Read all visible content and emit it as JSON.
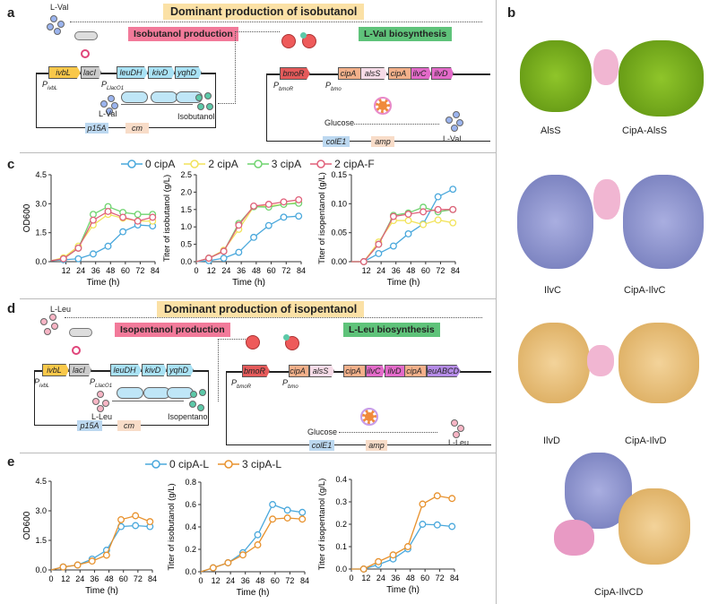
{
  "panels": {
    "a": "a",
    "b": "b",
    "c": "c",
    "d": "d",
    "e": "e"
  },
  "panel_a": {
    "title": "Dominant production of isobutanol",
    "left_tag": "Isobutanol production",
    "right_tag": "L-Val biosynthesis",
    "inducer": "L-Val",
    "product": "Isobutanol",
    "substrate": "L-Val",
    "glucose": "Glucose",
    "output": "L-Val",
    "genes_left": [
      "ivbL",
      "lacI",
      "leuDH",
      "kivD",
      "yqhD"
    ],
    "promoters_left": [
      "PivbL",
      "PLlacO1"
    ],
    "markers_left": [
      "p15A",
      "cm"
    ],
    "genes_right": [
      "bmoR",
      "cipA",
      "alsS",
      "cipA",
      "ilvC",
      "ilvD"
    ],
    "promoters_right": [
      "PbmoR",
      "Pbmo"
    ],
    "markers_right": [
      "colE1",
      "amp"
    ]
  },
  "panel_d": {
    "title": "Dominant production of isopentanol",
    "left_tag": "Isopentanol production",
    "right_tag": "L-Leu biosynthesis",
    "inducer": "L-Leu",
    "product": "Isopentanol",
    "substrate": "L-Leu",
    "glucose": "Glucose",
    "output": "L-Leu",
    "genes_left": [
      "ivbL",
      "lacI",
      "leuDH",
      "kivD",
      "yqhD"
    ],
    "promoters_left": [
      "PivbL",
      "PLlacO1"
    ],
    "markers_left": [
      "p15A",
      "cm"
    ],
    "genes_right": [
      "bmoR",
      "cipA",
      "alsS",
      "cipA",
      "ilvC",
      "ilvD",
      "cipA",
      "leuABCD"
    ],
    "promoters_right": [
      "PbmoR",
      "Pbmo"
    ],
    "markers_right": [
      "colE1",
      "amp"
    ]
  },
  "panel_b": {
    "labels": [
      "AlsS",
      "CipA-AlsS",
      "IlvC",
      "CipA-IlvC",
      "IlvD",
      "CipA-IlvD",
      "CipA-IlvCD"
    ]
  },
  "colors": {
    "0 cipA": "#4aa8dc",
    "2 cipA": "#f2e35a",
    "3 cipA": "#6fd36f",
    "2 cipA-F": "#e0607a",
    "0 cipA-L": "#4aa8dc",
    "3 cipA-L": "#e8922e"
  },
  "legend_c": [
    "0 cipA",
    "2 cipA",
    "3 cipA",
    "2 cipA-F"
  ],
  "legend_e": [
    "0 cipA-L",
    "3 cipA-L"
  ],
  "chart_data": [
    {
      "id": "c1",
      "type": "line",
      "xlabel": "Time (h)",
      "ylabel": "OD600",
      "xlim": [
        0,
        84
      ],
      "ylim": [
        0,
        4.5
      ],
      "xticks": [
        12,
        24,
        36,
        48,
        60,
        72,
        84
      ],
      "yticks": [
        "0.0",
        "1.5",
        "3.0",
        "4.5"
      ],
      "x": [
        0,
        10,
        22,
        34,
        46,
        58,
        70,
        82
      ],
      "series": [
        {
          "name": "0 cipA",
          "values": [
            0.05,
            0.1,
            0.15,
            0.4,
            0.8,
            1.55,
            1.9,
            1.85
          ]
        },
        {
          "name": "2 cipA",
          "values": [
            0.05,
            0.2,
            0.8,
            1.9,
            2.45,
            2.25,
            2.1,
            2.1
          ]
        },
        {
          "name": "3 cipA",
          "values": [
            0.05,
            0.15,
            0.7,
            2.45,
            2.85,
            2.55,
            2.45,
            2.45
          ]
        },
        {
          "name": "2 cipA-F",
          "values": [
            0.05,
            0.15,
            0.7,
            2.15,
            2.6,
            2.3,
            2.1,
            2.3
          ]
        }
      ]
    },
    {
      "id": "c2",
      "type": "line",
      "xlabel": "Time (h)",
      "ylabel": "Titer of isobutanol (g/L)",
      "xlim": [
        0,
        84
      ],
      "ylim": [
        0,
        2.5
      ],
      "xticks": [
        0,
        12,
        24,
        36,
        48,
        60,
        72,
        84
      ],
      "yticks": [
        "0.0",
        "0.5",
        "1.0",
        "1.5",
        "2.0",
        "2.5"
      ],
      "x": [
        0,
        10,
        22,
        34,
        46,
        58,
        70,
        82
      ],
      "series": [
        {
          "name": "0 cipA",
          "values": [
            0,
            0.03,
            0.1,
            0.27,
            0.7,
            1.04,
            1.28,
            1.31
          ]
        },
        {
          "name": "2 cipA",
          "values": [
            0,
            0.1,
            0.33,
            0.93,
            1.58,
            1.6,
            1.65,
            1.7
          ]
        },
        {
          "name": "3 cipA",
          "values": [
            0,
            0.1,
            0.3,
            1.1,
            1.58,
            1.57,
            1.65,
            1.68
          ]
        },
        {
          "name": "2 cipA-F",
          "values": [
            0,
            0.1,
            0.3,
            1.05,
            1.6,
            1.65,
            1.72,
            1.78
          ]
        }
      ]
    },
    {
      "id": "c3",
      "type": "line",
      "xlabel": "Time (h)",
      "ylabel": "Titer of isopentanol (g/L)",
      "xlim": [
        0,
        84
      ],
      "ylim": [
        0,
        0.15
      ],
      "xticks": [
        12,
        24,
        36,
        48,
        60,
        72,
        84
      ],
      "yticks": [
        "0.00",
        "0.05",
        "0.10",
        "0.15"
      ],
      "x": [
        0,
        10,
        22,
        34,
        46,
        58,
        70,
        82
      ],
      "series": [
        {
          "name": "0 cipA",
          "values": [
            0,
            0,
            0.014,
            0.027,
            0.048,
            0.065,
            0.112,
            0.125
          ]
        },
        {
          "name": "2 cipA",
          "values": [
            0,
            0,
            0.034,
            0.071,
            0.071,
            0.064,
            0.072,
            0.067
          ]
        },
        {
          "name": "3 cipA",
          "values": [
            0,
            0,
            0.03,
            0.08,
            0.084,
            0.094,
            0.086,
            0.09
          ]
        },
        {
          "name": "2 cipA-F",
          "values": [
            0,
            0,
            0.03,
            0.078,
            0.082,
            0.086,
            0.09,
            0.09
          ]
        }
      ]
    },
    {
      "id": "e1",
      "type": "line",
      "xlabel": "Time (h)",
      "ylabel": "OD600",
      "xlim": [
        0,
        84
      ],
      "ylim": [
        0,
        4.5
      ],
      "xticks": [
        0,
        12,
        24,
        36,
        48,
        60,
        72,
        84
      ],
      "yticks": [
        "0.0",
        "1.5",
        "3.0",
        "4.5"
      ],
      "x": [
        0,
        10,
        22,
        34,
        46,
        58,
        70,
        82
      ],
      "series": [
        {
          "name": "0 cipA-L",
          "values": [
            0,
            0.15,
            0.25,
            0.55,
            1.0,
            2.2,
            2.25,
            2.2
          ]
        },
        {
          "name": "3 cipA-L",
          "values": [
            0,
            0.15,
            0.25,
            0.45,
            0.75,
            2.55,
            2.75,
            2.45
          ]
        }
      ]
    },
    {
      "id": "e2",
      "type": "line",
      "xlabel": "Time (h)",
      "ylabel": "Titer of isobutanol (g/L)",
      "xlim": [
        0,
        84
      ],
      "ylim": [
        0,
        0.8
      ],
      "xticks": [
        0,
        12,
        24,
        36,
        48,
        60,
        72,
        84
      ],
      "yticks": [
        "0.0",
        "0.2",
        "0.4",
        "0.6",
        "0.8"
      ],
      "x": [
        0,
        10,
        22,
        34,
        46,
        58,
        70,
        82
      ],
      "series": [
        {
          "name": "0 cipA-L",
          "values": [
            0,
            0.035,
            0.08,
            0.17,
            0.33,
            0.6,
            0.55,
            0.53
          ]
        },
        {
          "name": "3 cipA-L",
          "values": [
            0,
            0.035,
            0.08,
            0.15,
            0.24,
            0.47,
            0.48,
            0.47
          ]
        }
      ]
    },
    {
      "id": "e3",
      "type": "line",
      "xlabel": "Time (h)",
      "ylabel": "Titer of isopentanol (g/L)",
      "xlim": [
        0,
        84
      ],
      "ylim": [
        0,
        0.4
      ],
      "xticks": [
        0,
        12,
        24,
        36,
        48,
        60,
        72,
        84
      ],
      "yticks": [
        "0.0",
        "0.1",
        "0.2",
        "0.3",
        "0.4"
      ],
      "x": [
        0,
        10,
        22,
        34,
        46,
        58,
        70,
        82
      ],
      "series": [
        {
          "name": "0 cipA-L",
          "values": [
            0,
            0,
            0.02,
            0.045,
            0.09,
            0.2,
            0.197,
            0.19
          ]
        },
        {
          "name": "3 cipA-L",
          "values": [
            0,
            0,
            0.033,
            0.063,
            0.1,
            0.29,
            0.327,
            0.315
          ]
        }
      ]
    }
  ]
}
